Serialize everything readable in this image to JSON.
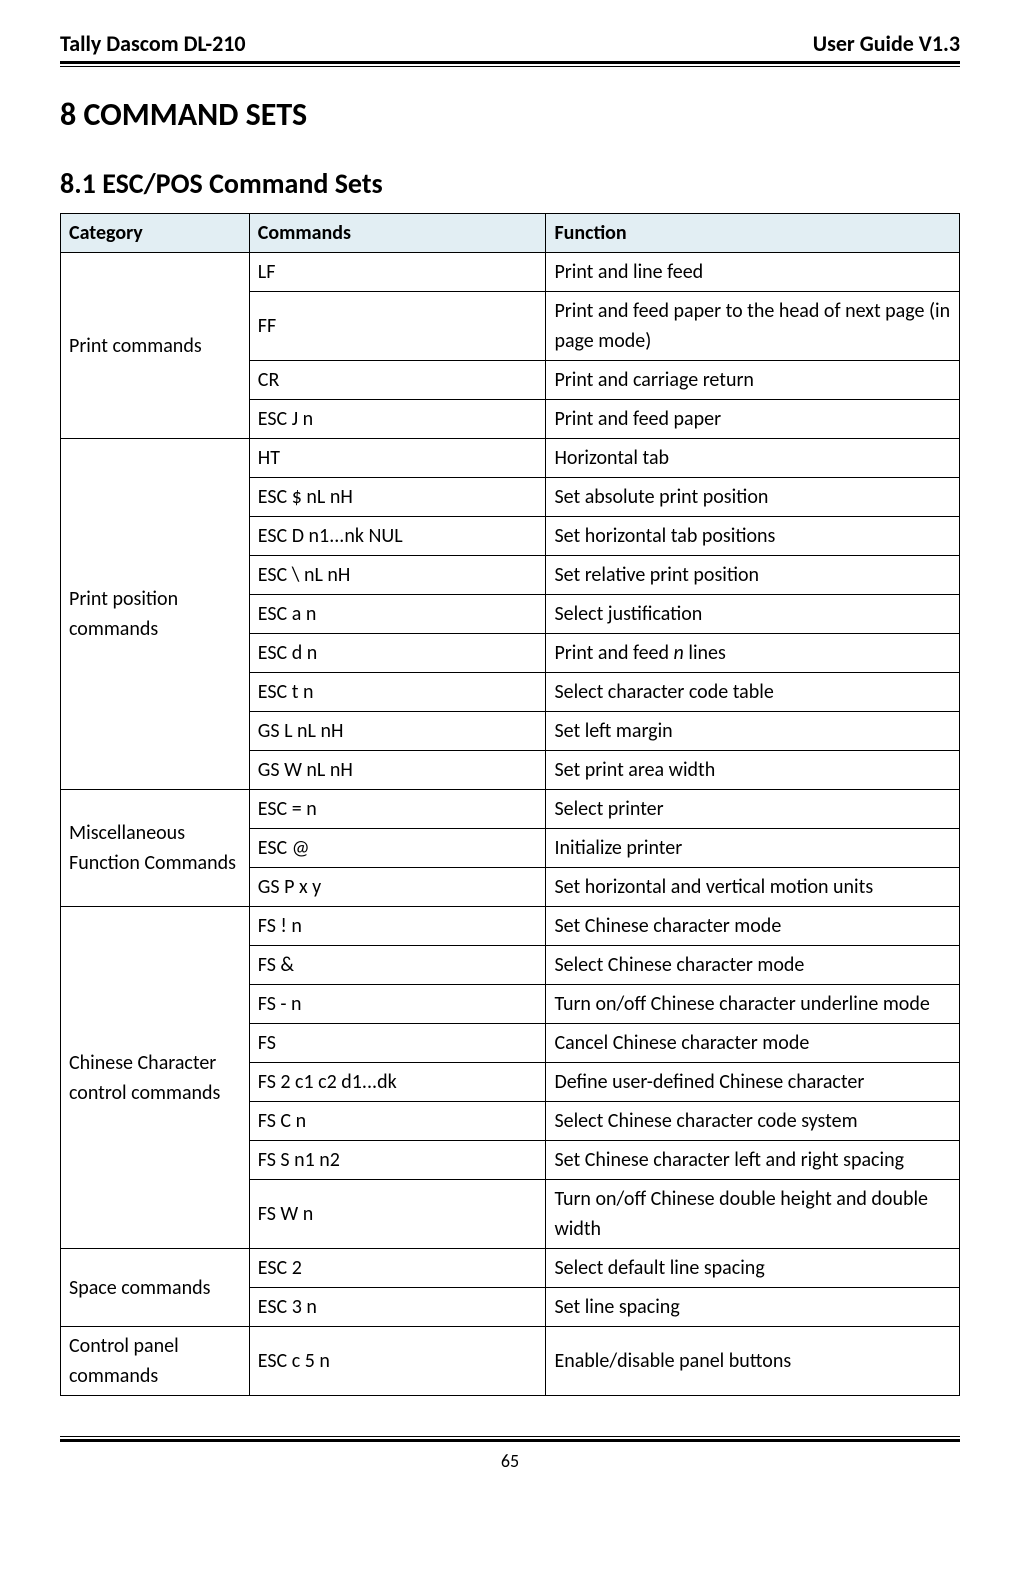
{
  "header": {
    "left": "Tally Dascom DL-210",
    "right": "User Guide V1.3"
  },
  "h1": "8 COMMAND SETS",
  "h2": "8.1 ESC/POS Command Sets",
  "table": {
    "header_bg": "#e2eef3",
    "columns": [
      "Category",
      "Commands",
      "Function"
    ],
    "col_widths_pct": [
      21,
      33,
      46
    ],
    "groups": [
      {
        "category": "Print commands",
        "rows": [
          {
            "cmd": "LF",
            "fn": "Print and line feed"
          },
          {
            "cmd": "FF",
            "fn": "Print and feed paper to the head of next page (in page mode)"
          },
          {
            "cmd": "CR",
            "fn": "Print and carriage return"
          },
          {
            "cmd": "ESC J n",
            "fn": "Print and feed paper"
          }
        ]
      },
      {
        "category": "Print position commands",
        "rows": [
          {
            "cmd": "HT",
            "fn": "Horizontal tab"
          },
          {
            "cmd": "ESC $ nL nH",
            "fn": "Set absolute print position"
          },
          {
            "cmd": "ESC D n1...nk NUL",
            "fn": "Set horizontal tab positions"
          },
          {
            "cmd": "ESC \\ nL nH",
            "fn": "Set relative print position"
          },
          {
            "cmd": "ESC a n",
            "fn": "Select justification"
          },
          {
            "cmd": "ESC d n",
            "fn_html": "Print and feed <span class=\"italic\">n</span> lines"
          },
          {
            "cmd": "ESC t n",
            "fn": "Select character code table"
          },
          {
            "cmd": "GS L nL nH",
            "fn": "Set left margin"
          },
          {
            "cmd": "GS W nL nH",
            "fn": "Set print area width"
          }
        ]
      },
      {
        "category": "Miscellaneous Function Commands",
        "rows": [
          {
            "cmd": "ESC = n",
            "fn": "Select printer"
          },
          {
            "cmd": "ESC @",
            "fn": "Initialize printer"
          },
          {
            "cmd": "GS P x y",
            "fn": "Set horizontal and vertical motion units"
          }
        ]
      },
      {
        "category": "Chinese Character control commands",
        "rows": [
          {
            "cmd": "FS ! n",
            "fn": "Set Chinese character mode"
          },
          {
            "cmd": "FS &",
            "fn": "Select Chinese character mode"
          },
          {
            "cmd": "FS - n",
            "fn": "Turn on/off Chinese character underline mode"
          },
          {
            "cmd": "FS",
            "fn": "Cancel Chinese character mode"
          },
          {
            "cmd": "FS 2 c1 c2 d1...dk",
            "fn": "Define user-defined Chinese character"
          },
          {
            "cmd": "FS C n",
            "fn": "Select Chinese character code system"
          },
          {
            "cmd": "FS S n1 n2",
            "fn": "Set Chinese character left and right spacing"
          },
          {
            "cmd": "FS W n",
            "fn": "Turn on/off Chinese double height and double width"
          }
        ]
      },
      {
        "category": "Space commands",
        "rows": [
          {
            "cmd": "ESC 2",
            "fn": "Select default line spacing"
          },
          {
            "cmd": "ESC 3 n",
            "fn": "Set line spacing"
          }
        ]
      },
      {
        "category": "Control panel commands",
        "rows": [
          {
            "cmd": "ESC c 5 n",
            "fn": "Enable/disable panel buttons"
          }
        ]
      }
    ]
  },
  "page_number": "65",
  "styles": {
    "body_font_size_pt": 15,
    "h1_font_size_pt": 24,
    "h2_font_size_pt": 21,
    "text_color": "#000000",
    "bg_color": "#ffffff",
    "border_color": "#000000"
  }
}
